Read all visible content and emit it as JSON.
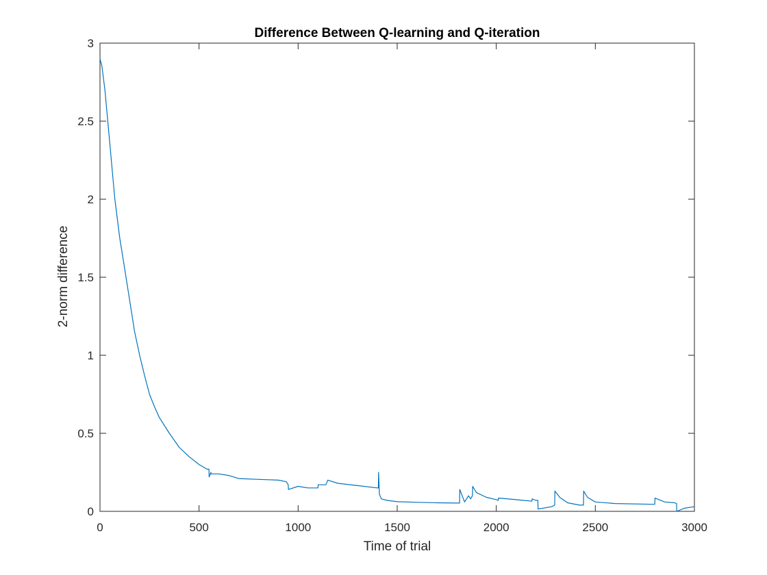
{
  "chart_data": {
    "type": "line",
    "title": "Difference Between Q-learning and Q-iteration",
    "xlabel": "Time of trial",
    "ylabel": "2-norm difference",
    "xlim": [
      0,
      3000
    ],
    "ylim": [
      0,
      3
    ],
    "xticks": [
      0,
      500,
      1000,
      1500,
      2000,
      2500,
      3000
    ],
    "xtick_labels": [
      "0",
      "500",
      "1000",
      "1500",
      "2000",
      "2500",
      "3000"
    ],
    "yticks": [
      0,
      0.5,
      1,
      1.5,
      2,
      2.5,
      3
    ],
    "ytick_labels": [
      "0",
      "0.5",
      "1",
      "1.5",
      "2",
      "2.5",
      "3"
    ],
    "grid": false,
    "legend": "none",
    "line_color": "#0072BD",
    "series": [
      {
        "x": [
          0,
          10,
          25,
          50,
          75,
          100,
          125,
          150,
          175,
          200,
          225,
          250,
          275,
          300,
          350,
          400,
          450,
          500,
          540,
          550,
          551,
          560,
          561,
          600,
          650,
          700,
          800,
          900,
          940,
          950,
          951,
          1000,
          1050,
          1100,
          1101,
          1140,
          1150,
          1200,
          1300,
          1400,
          1405,
          1406,
          1410,
          1420,
          1450,
          1500,
          1600,
          1700,
          1800,
          1815,
          1816,
          1840,
          1860,
          1870,
          1880,
          1881,
          1900,
          1950,
          2000,
          2010,
          2011,
          2100,
          2180,
          2181,
          2200,
          2210,
          2211,
          2280,
          2295,
          2296,
          2320,
          2360,
          2420,
          2440,
          2441,
          2460,
          2500,
          2600,
          2790,
          2800,
          2801,
          2850,
          2900,
          2910,
          2911,
          2950,
          3000
        ],
        "y": [
          2.9,
          2.85,
          2.7,
          2.35,
          2.0,
          1.75,
          1.55,
          1.35,
          1.15,
          1.0,
          0.87,
          0.75,
          0.67,
          0.6,
          0.5,
          0.41,
          0.35,
          0.3,
          0.27,
          0.27,
          0.22,
          0.25,
          0.24,
          0.24,
          0.23,
          0.21,
          0.205,
          0.2,
          0.19,
          0.17,
          0.14,
          0.16,
          0.15,
          0.15,
          0.17,
          0.17,
          0.2,
          0.18,
          0.165,
          0.15,
          0.15,
          0.25,
          0.11,
          0.08,
          0.07,
          0.062,
          0.058,
          0.055,
          0.053,
          0.053,
          0.14,
          0.06,
          0.1,
          0.08,
          0.1,
          0.16,
          0.12,
          0.09,
          0.075,
          0.07,
          0.085,
          0.075,
          0.065,
          0.08,
          0.07,
          0.07,
          0.015,
          0.03,
          0.04,
          0.13,
          0.09,
          0.055,
          0.04,
          0.04,
          0.13,
          0.09,
          0.06,
          0.05,
          0.045,
          0.045,
          0.085,
          0.06,
          0.055,
          0.05,
          0.0,
          0.02,
          0.03
        ]
      }
    ]
  }
}
